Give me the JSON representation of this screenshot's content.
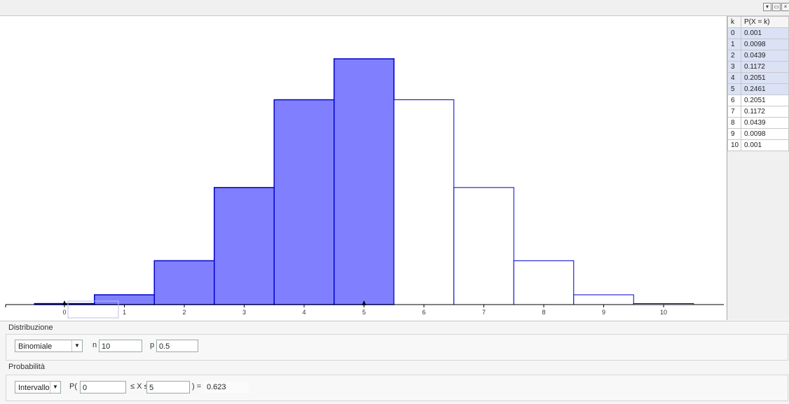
{
  "window": {
    "minimize_label": "▾",
    "restore_label": "▭",
    "close_label": "×"
  },
  "chart_data": {
    "type": "bar",
    "categories": [
      "0",
      "1",
      "2",
      "3",
      "4",
      "5",
      "6",
      "7",
      "8",
      "9",
      "10"
    ],
    "values": [
      0.001,
      0.0098,
      0.0439,
      0.1172,
      0.2051,
      0.2461,
      0.2051,
      0.1172,
      0.0439,
      0.0098,
      0.001
    ],
    "highlighted_range": [
      0,
      5
    ],
    "title": "",
    "xlabel": "",
    "ylabel": "",
    "xlim": [
      -1,
      11
    ],
    "ylim": [
      0,
      0.25
    ],
    "grid": false,
    "colors": {
      "filled": "#8080ff",
      "outline": "#0000cc",
      "axis": "#000000"
    }
  },
  "table": {
    "headers": [
      "k",
      "P(X = k)"
    ],
    "rows": [
      {
        "k": "0",
        "p": "0.001"
      },
      {
        "k": "1",
        "p": "0.0098"
      },
      {
        "k": "2",
        "p": "0.0439"
      },
      {
        "k": "3",
        "p": "0.1172"
      },
      {
        "k": "4",
        "p": "0.2051"
      },
      {
        "k": "5",
        "p": "0.2461"
      },
      {
        "k": "6",
        "p": "0.2051"
      },
      {
        "k": "7",
        "p": "0.1172"
      },
      {
        "k": "8",
        "p": "0.0439"
      },
      {
        "k": "9",
        "p": "0.0098"
      },
      {
        "k": "10",
        "p": "0.001"
      }
    ],
    "selected_through_index": 5,
    "colors": {
      "selected_bg": "#dbe2f5"
    }
  },
  "distribution": {
    "section_title": "Distribuzione",
    "type_selected": "Binomiale",
    "n_label": "n",
    "n_value": "10",
    "p_label": "p",
    "p_value": "0.5"
  },
  "probability": {
    "section_title": "Probabilità",
    "mode_selected": "Intervallo",
    "prefix_label": "P(",
    "lower_value": "0",
    "middle_label": "≤ X ≤",
    "upper_value": "5",
    "suffix_label": ") =",
    "result_value": "0.623"
  }
}
